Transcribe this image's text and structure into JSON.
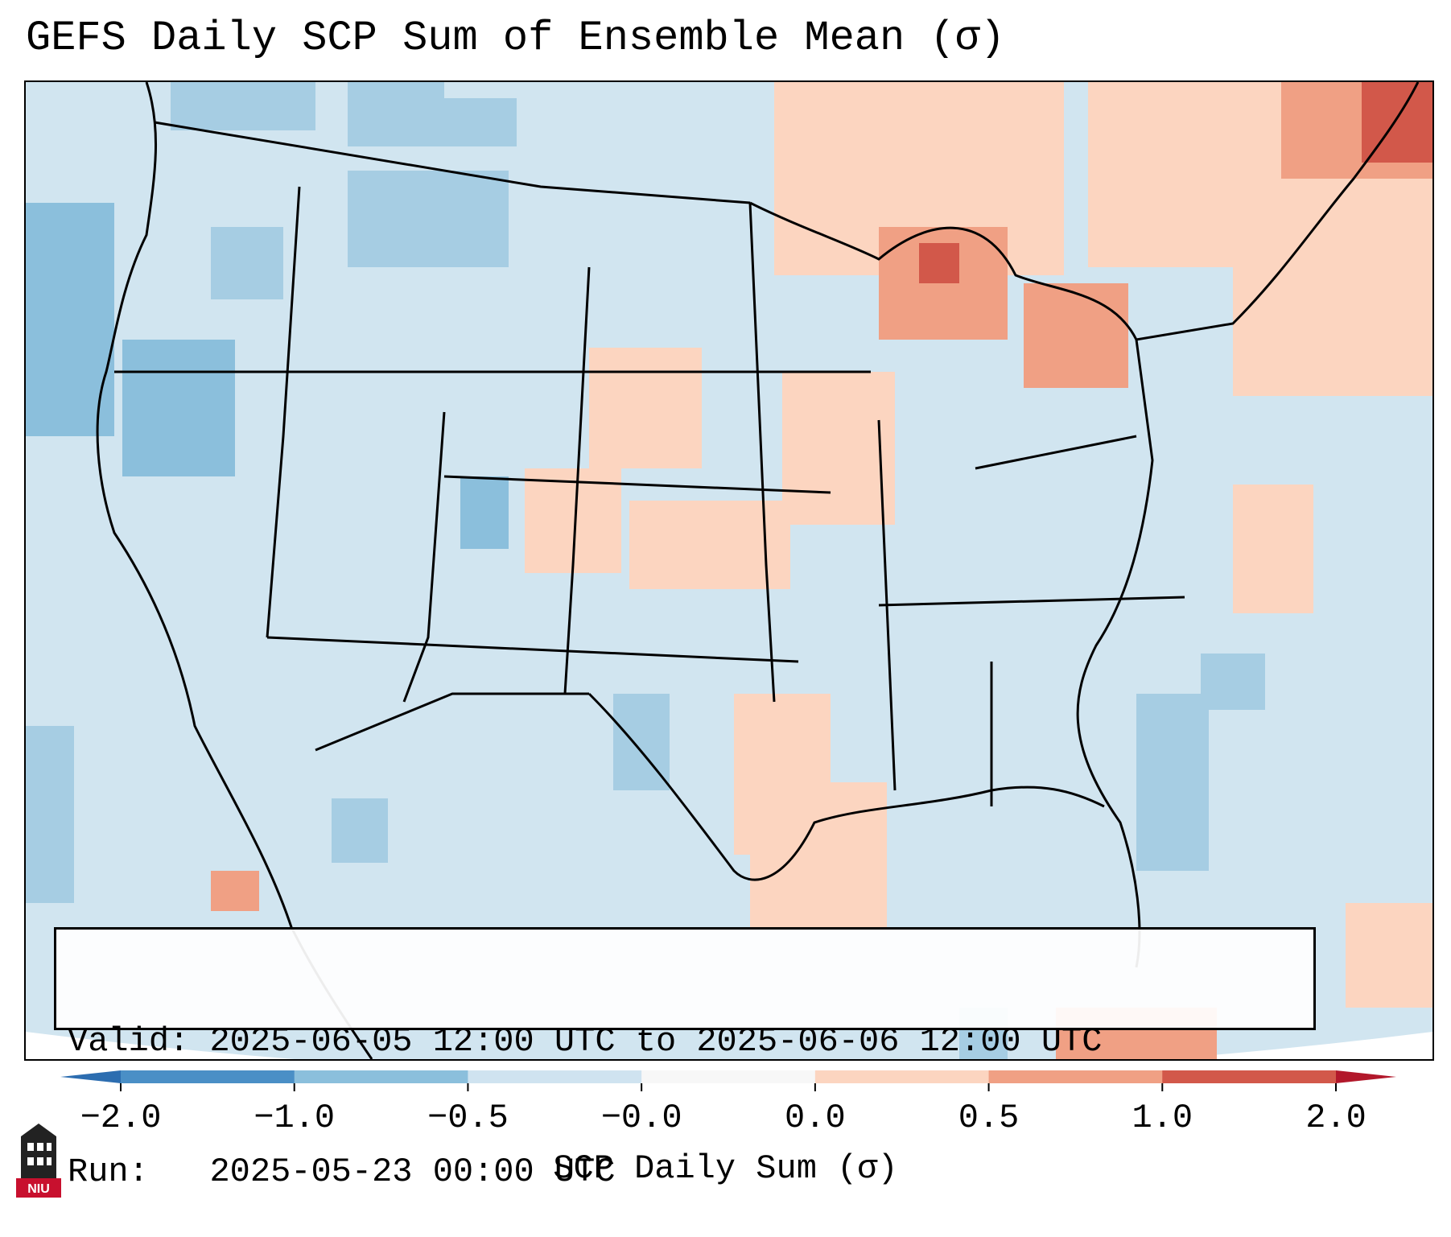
{
  "title": "GEFS Daily SCP Sum of Ensemble Mean (σ)",
  "info": {
    "valid_label": "Valid:",
    "valid_value": "2025-06-05 12:00 UTC to 2025-06-06 12:00 UTC",
    "run_label": "Run:",
    "run_value": "2025-05-23 00:00 UTC"
  },
  "colorbar": {
    "label": "SCP Daily Sum (σ)",
    "ticks": [
      "−2.0",
      "−1.0",
      "−0.5",
      "−0.0",
      "0.0",
      "0.5",
      "1.0",
      "2.0"
    ],
    "colors": [
      "#4a8fc6",
      "#8bbfdc",
      "#cfe3f0",
      "#f7f7f7",
      "#fcd5c0",
      "#f0a084",
      "#d2584a"
    ],
    "extend_low_color": "#2c6db0",
    "extend_high_color": "#b2182b"
  },
  "map": {
    "background_color": "#d1e5f0",
    "outside_color": "#ffffff",
    "weak_positive_color": "#fcd5c0",
    "moderate_positive_color": "#f0a084",
    "strong_positive_color": "#d2584a",
    "extreme_positive_color": "#b2182b",
    "weak_negative_color": "#a6cde3",
    "moderate_negative_color": "#8bbfdc"
  },
  "logo": {
    "text": "NIU",
    "color": "#c8102e"
  }
}
